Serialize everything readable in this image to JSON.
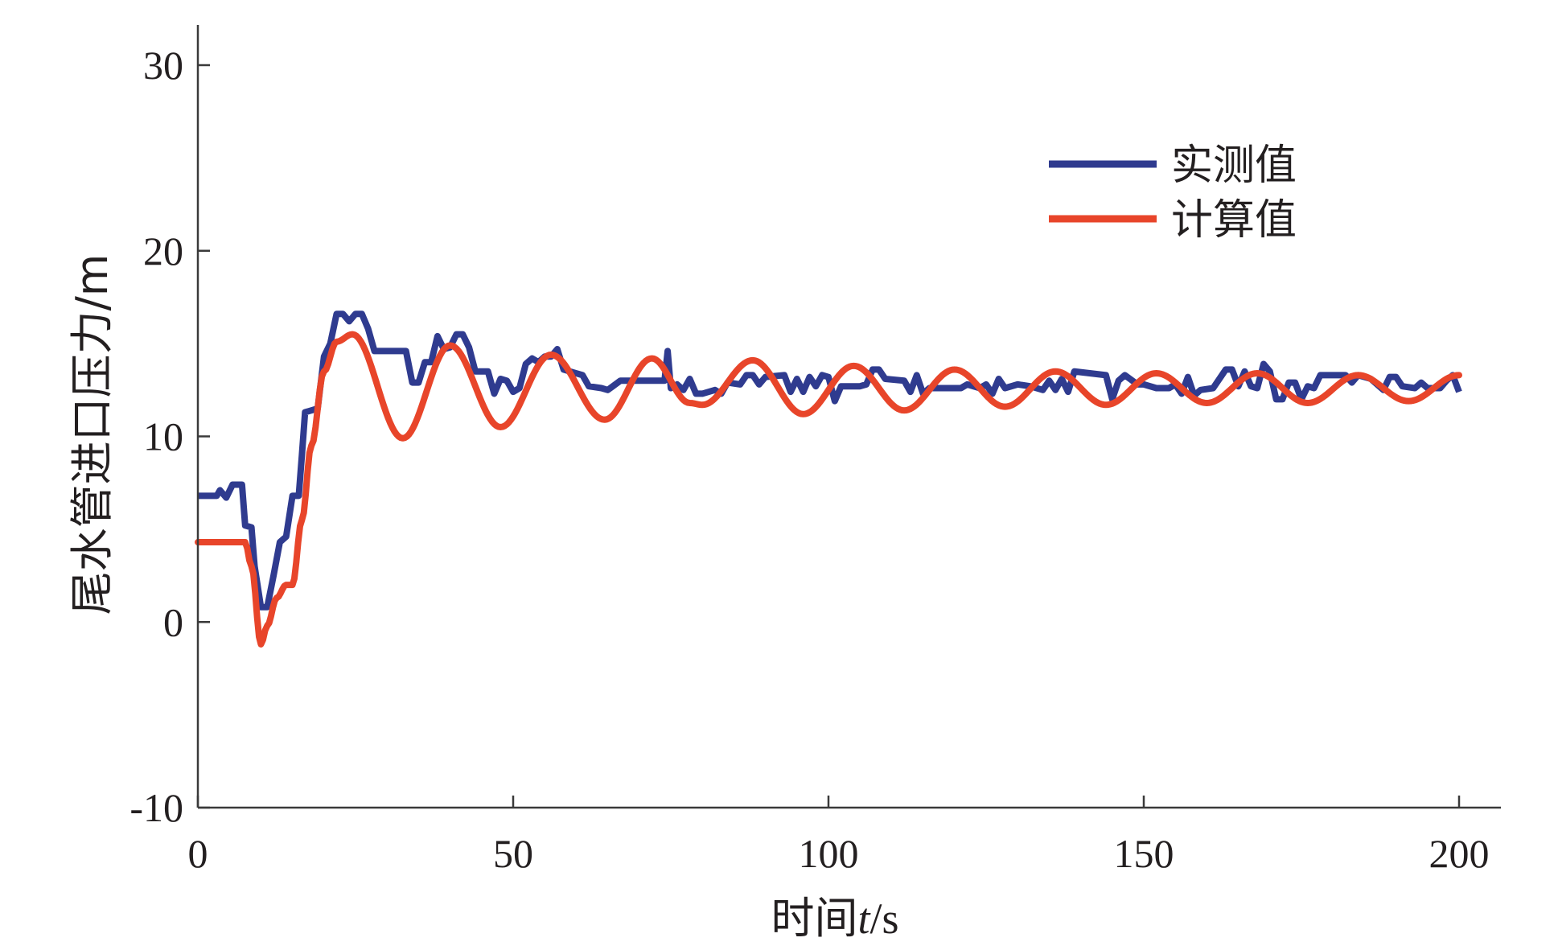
{
  "chart_data": {
    "type": "line",
    "title": "",
    "xlabel": "时间t/s",
    "xlabel_italic_part": "t",
    "ylabel": "尾水管进口压力/m",
    "xlim": [
      0,
      207
    ],
    "ylim": [
      -10,
      32
    ],
    "xticks": [
      0,
      50,
      100,
      150,
      200
    ],
    "yticks": [
      -10,
      0,
      10,
      20,
      30
    ],
    "xtick_labels": [
      "0",
      "50",
      "100",
      "150",
      "200"
    ],
    "ytick_labels": [
      "-10",
      "0",
      "10",
      "20",
      "30"
    ],
    "grid": false,
    "legend_position": "top-right",
    "series": [
      {
        "name": "实测值",
        "color": "#2f3b8f",
        "points": [
          [
            0,
            6.8
          ],
          [
            3,
            6.8
          ],
          [
            3.5,
            7.1
          ],
          [
            4.5,
            6.7
          ],
          [
            5.5,
            7.4
          ],
          [
            7,
            7.4
          ],
          [
            7.5,
            5.2
          ],
          [
            8.5,
            5.1
          ],
          [
            9,
            3
          ],
          [
            10,
            0.8
          ],
          [
            11,
            0.8
          ],
          [
            12,
            2.5
          ],
          [
            13,
            4.3
          ],
          [
            14,
            4.6
          ],
          [
            15,
            6.8
          ],
          [
            16,
            6.8
          ],
          [
            16.5,
            9
          ],
          [
            17,
            11.3
          ],
          [
            18,
            11.4
          ],
          [
            19,
            11.5
          ],
          [
            20,
            14.3
          ],
          [
            21,
            15
          ],
          [
            22,
            16.6
          ],
          [
            23,
            16.6
          ],
          [
            24,
            16.2
          ],
          [
            25,
            16.6
          ],
          [
            26,
            16.6
          ],
          [
            27,
            15.8
          ],
          [
            28,
            14.6
          ],
          [
            33,
            14.6
          ],
          [
            34,
            12.9
          ],
          [
            35,
            12.9
          ],
          [
            36,
            14
          ],
          [
            37,
            14
          ],
          [
            38,
            15.4
          ],
          [
            39,
            14.7
          ],
          [
            40,
            14.8
          ],
          [
            41,
            15.5
          ],
          [
            42,
            15.5
          ],
          [
            43,
            14.8
          ],
          [
            44,
            13.5
          ],
          [
            46,
            13.5
          ],
          [
            47,
            12.3
          ],
          [
            48,
            13.1
          ],
          [
            49,
            13
          ],
          [
            50,
            12.4
          ],
          [
            51,
            12.6
          ],
          [
            52,
            13.9
          ],
          [
            53,
            14.2
          ],
          [
            54,
            14
          ],
          [
            55,
            14.3
          ],
          [
            56,
            14.3
          ],
          [
            57,
            14.7
          ],
          [
            58,
            13.6
          ],
          [
            60,
            13.4
          ],
          [
            61,
            13.3
          ],
          [
            62,
            12.7
          ],
          [
            64,
            12.6
          ],
          [
            65,
            12.5
          ],
          [
            67,
            13
          ],
          [
            74,
            13
          ],
          [
            74.5,
            14.6
          ],
          [
            75,
            12.6
          ],
          [
            76,
            12.8
          ],
          [
            77,
            12.5
          ],
          [
            78,
            13.1
          ],
          [
            79,
            12.3
          ],
          [
            80,
            12.3
          ],
          [
            82,
            12.5
          ],
          [
            83,
            12.3
          ],
          [
            84,
            12.9
          ],
          [
            86,
            12.8
          ],
          [
            87,
            13.3
          ],
          [
            88,
            13.3
          ],
          [
            89,
            12.8
          ],
          [
            90,
            13.2
          ],
          [
            93,
            13.3
          ],
          [
            94,
            12.4
          ],
          [
            95,
            13.1
          ],
          [
            96,
            12.4
          ],
          [
            97,
            13.2
          ],
          [
            98,
            12.7
          ],
          [
            99,
            13.3
          ],
          [
            100,
            13.2
          ],
          [
            101,
            11.9
          ],
          [
            102,
            12.7
          ],
          [
            105,
            12.7
          ],
          [
            106,
            12.8
          ],
          [
            107,
            13.6
          ],
          [
            108,
            13.6
          ],
          [
            109,
            13.1
          ],
          [
            112,
            13
          ],
          [
            113,
            12.4
          ],
          [
            114,
            13.3
          ],
          [
            115,
            12.3
          ],
          [
            116,
            12.6
          ],
          [
            121,
            12.6
          ],
          [
            122,
            12.8
          ],
          [
            124,
            12.6
          ],
          [
            125,
            12.8
          ],
          [
            126,
            12.3
          ],
          [
            127,
            13.1
          ],
          [
            128,
            12.6
          ],
          [
            130,
            12.8
          ],
          [
            132,
            12.7
          ],
          [
            134,
            12.5
          ],
          [
            135,
            13
          ],
          [
            136,
            12.5
          ],
          [
            137,
            13.1
          ],
          [
            138,
            12.4
          ],
          [
            139,
            13.5
          ],
          [
            144,
            13.3
          ],
          [
            145,
            12
          ],
          [
            146,
            13
          ],
          [
            147,
            13.3
          ],
          [
            149,
            12.8
          ],
          [
            150,
            12.8
          ],
          [
            152,
            12.6
          ],
          [
            154,
            12.6
          ],
          [
            155,
            12.8
          ],
          [
            156,
            12.3
          ],
          [
            157,
            13.2
          ],
          [
            158,
            12.2
          ],
          [
            159,
            12.5
          ],
          [
            161,
            12.6
          ],
          [
            163,
            13.6
          ],
          [
            164,
            13.6
          ],
          [
            165,
            12.7
          ],
          [
            166,
            13.5
          ],
          [
            167,
            12.7
          ],
          [
            168,
            12.6
          ],
          [
            169,
            13.9
          ],
          [
            170,
            13.5
          ],
          [
            171,
            12
          ],
          [
            172,
            12
          ],
          [
            173,
            12.9
          ],
          [
            174,
            12.9
          ],
          [
            175,
            12
          ],
          [
            176,
            12.7
          ],
          [
            177,
            12.6
          ],
          [
            178,
            13.3
          ],
          [
            182,
            13.3
          ],
          [
            183,
            12.9
          ],
          [
            184,
            13.3
          ],
          [
            186,
            13.1
          ],
          [
            188,
            12.5
          ],
          [
            189,
            13.2
          ],
          [
            190,
            13.2
          ],
          [
            191,
            12.7
          ],
          [
            193,
            12.6
          ],
          [
            194,
            12.9
          ],
          [
            195,
            12.6
          ],
          [
            197,
            12.6
          ],
          [
            198,
            13
          ],
          [
            199,
            13.3
          ],
          [
            200,
            12.4
          ]
        ]
      },
      {
        "name": "计算值",
        "color": "#e8452a",
        "points": [
          [
            0,
            4.3
          ],
          [
            7.5,
            4.3
          ],
          [
            8.5,
            3
          ],
          [
            10,
            -1.2
          ],
          [
            11,
            -0.2
          ],
          [
            12.5,
            1.3
          ],
          [
            14,
            2
          ],
          [
            15,
            2
          ],
          [
            16.5,
            5.5
          ],
          [
            18,
            9.5
          ],
          [
            20,
            13.5
          ],
          [
            22,
            15.1
          ],
          [
            24.5,
            15.5
          ],
          [
            32.5,
            9.9
          ],
          [
            40,
            14.9
          ],
          [
            48,
            10.5
          ],
          [
            56,
            14.4
          ],
          [
            64.5,
            10.9
          ],
          [
            72,
            14.2
          ],
          [
            78,
            11.8
          ],
          [
            80,
            11.7
          ],
          [
            88,
            14.1
          ],
          [
            96,
            11.2
          ],
          [
            104,
            13.8
          ],
          [
            112,
            11.4
          ],
          [
            120,
            13.6
          ],
          [
            128,
            11.6
          ],
          [
            136,
            13.5
          ],
          [
            144,
            11.7
          ],
          [
            152,
            13.4
          ],
          [
            160,
            11.8
          ],
          [
            168,
            13.4
          ],
          [
            176,
            11.8
          ],
          [
            184,
            13.3
          ],
          [
            192,
            11.9
          ],
          [
            200,
            13.3
          ]
        ]
      }
    ]
  }
}
